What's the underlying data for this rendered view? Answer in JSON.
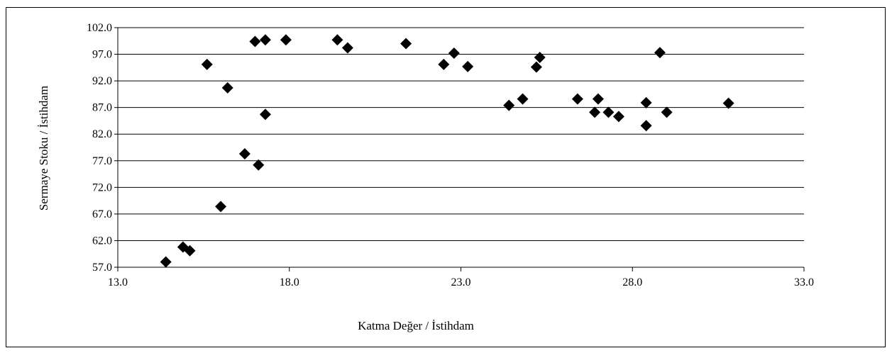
{
  "chart_data": {
    "type": "scatter",
    "title": "",
    "xlabel": "Katma Değer / İstihdam",
    "ylabel": "Sermaye Stoku / İstihdam",
    "xlim": [
      13.0,
      33.0
    ],
    "ylim": [
      57.0,
      102.0
    ],
    "x_ticks": [
      "13.0",
      "18.0",
      "23.0",
      "28.0",
      "33.0"
    ],
    "y_ticks": [
      "57.0",
      "62.0",
      "67.0",
      "72.0",
      "77.0",
      "82.0",
      "87.0",
      "92.0",
      "97.0",
      "102.0"
    ],
    "grid": "horizontal",
    "marker": "diamond",
    "marker_color": "#000000",
    "series": [
      {
        "points": [
          {
            "x": 14.4,
            "y": 58.0
          },
          {
            "x": 14.9,
            "y": 60.8
          },
          {
            "x": 15.1,
            "y": 60.1
          },
          {
            "x": 15.6,
            "y": 95.1
          },
          {
            "x": 16.0,
            "y": 68.4
          },
          {
            "x": 16.2,
            "y": 90.7
          },
          {
            "x": 16.7,
            "y": 78.3
          },
          {
            "x": 17.0,
            "y": 99.4
          },
          {
            "x": 17.1,
            "y": 76.2
          },
          {
            "x": 17.3,
            "y": 99.7
          },
          {
            "x": 17.3,
            "y": 85.7
          },
          {
            "x": 17.9,
            "y": 99.7
          },
          {
            "x": 19.4,
            "y": 99.7
          },
          {
            "x": 19.7,
            "y": 98.2
          },
          {
            "x": 21.4,
            "y": 99.0
          },
          {
            "x": 22.5,
            "y": 95.1
          },
          {
            "x": 22.8,
            "y": 97.2
          },
          {
            "x": 23.2,
            "y": 94.7
          },
          {
            "x": 24.4,
            "y": 87.4
          },
          {
            "x": 24.8,
            "y": 88.6
          },
          {
            "x": 25.2,
            "y": 94.6
          },
          {
            "x": 25.3,
            "y": 96.4
          },
          {
            "x": 26.4,
            "y": 88.6
          },
          {
            "x": 26.9,
            "y": 86.1
          },
          {
            "x": 27.0,
            "y": 88.6
          },
          {
            "x": 27.3,
            "y": 86.1
          },
          {
            "x": 27.6,
            "y": 85.3
          },
          {
            "x": 28.4,
            "y": 87.9
          },
          {
            "x": 28.4,
            "y": 83.6
          },
          {
            "x": 28.8,
            "y": 97.3
          },
          {
            "x": 29.0,
            "y": 86.1
          },
          {
            "x": 30.8,
            "y": 87.8
          }
        ]
      }
    ]
  }
}
